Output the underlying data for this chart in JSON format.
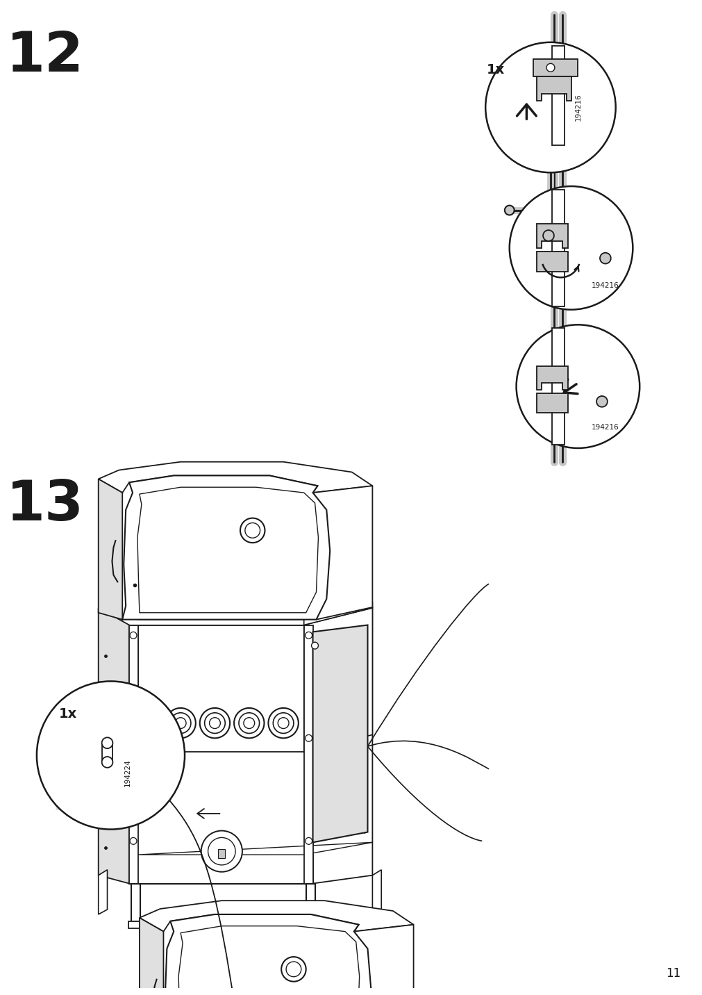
{
  "page_number": "11",
  "bg": "#ffffff",
  "lc": "#1a1a1a",
  "gray1": "#c8c8c8",
  "gray2": "#e0e0e0",
  "step12_label": "12",
  "step13_label": "13",
  "qty": "1x",
  "part12": "194216",
  "part13": "194224"
}
